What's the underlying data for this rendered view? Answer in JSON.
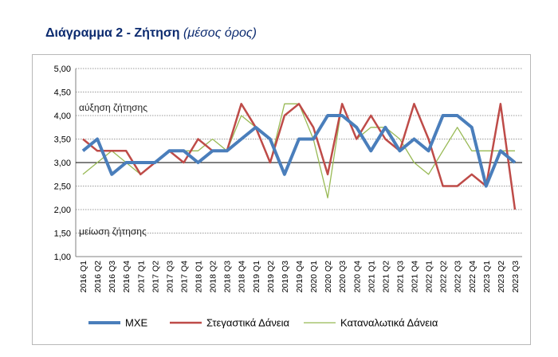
{
  "title": {
    "main": "Διάγραμμα 2 - Ζήτηση",
    "sub": "(μέσος όρος)"
  },
  "annotations": {
    "increase": "αύξηση ζήτησης",
    "decrease": "μείωση ζήτησης"
  },
  "colors": {
    "mxe": "#4a7ebb",
    "housing": "#be4b48",
    "consumer": "#98b954",
    "title": "#0b2a6f"
  },
  "chart_data": {
    "type": "line",
    "title": "Διάγραμμα 2 - Ζήτηση (μέσος όρος)",
    "xlabel": "",
    "ylabel": "",
    "ylim": [
      1.0,
      5.0
    ],
    "yticks": [
      "1,00",
      "1,50",
      "2,00",
      "2,50",
      "3,00",
      "3,50",
      "4,00",
      "4,50",
      "5,00"
    ],
    "grid": true,
    "legend_position": "bottom",
    "categories": [
      "2016 Q1",
      "2016 Q2",
      "2016 Q3",
      "2016 Q4",
      "2017 Q1",
      "2017 Q2",
      "2017 Q3",
      "2017 Q4",
      "2018 Q1",
      "2018 Q2",
      "2018 Q3",
      "2018 Q4",
      "2019 Q1",
      "2019 Q2",
      "2019 Q3",
      "2019 Q4",
      "2020 Q1",
      "2020 Q2",
      "2020 Q3",
      "2020 Q4",
      "2021 Q1",
      "2021 Q2",
      "2021 Q3",
      "2021 Q4",
      "2022 Q1",
      "2022 Q2",
      "2022 Q3",
      "2022 Q4",
      "2023 Q1",
      "2023 Q2",
      "2023 Q3"
    ],
    "series": [
      {
        "name": "ΜΧΕ",
        "values": [
          3.25,
          3.5,
          2.75,
          3.0,
          3.0,
          3.0,
          3.25,
          3.25,
          3.0,
          3.25,
          3.25,
          3.5,
          3.75,
          3.5,
          2.75,
          3.5,
          3.5,
          4.0,
          4.0,
          3.75,
          3.25,
          3.75,
          3.25,
          3.5,
          3.25,
          4.0,
          4.0,
          3.75,
          2.5,
          3.25,
          3.0
        ]
      },
      {
        "name": "Στεγαστικά Δάνεια",
        "values": [
          3.5,
          3.25,
          3.25,
          3.25,
          2.75,
          3.0,
          3.25,
          3.0,
          3.5,
          3.25,
          3.25,
          4.25,
          3.75,
          3.0,
          4.0,
          4.25,
          3.75,
          2.75,
          4.25,
          3.5,
          4.0,
          3.5,
          3.25,
          4.25,
          3.5,
          2.5,
          2.5,
          2.75,
          2.5,
          4.25,
          2.0
        ]
      },
      {
        "name": "Καταναλωτικά Δάνεια",
        "values": [
          2.75,
          3.0,
          3.25,
          3.0,
          2.75,
          3.0,
          3.25,
          3.25,
          3.25,
          3.5,
          3.25,
          4.0,
          3.75,
          3.0,
          4.25,
          4.25,
          3.5,
          2.25,
          4.25,
          3.5,
          3.75,
          3.75,
          3.5,
          3.0,
          2.75,
          3.25,
          3.75,
          3.25,
          3.25,
          3.25,
          3.25
        ]
      }
    ]
  }
}
